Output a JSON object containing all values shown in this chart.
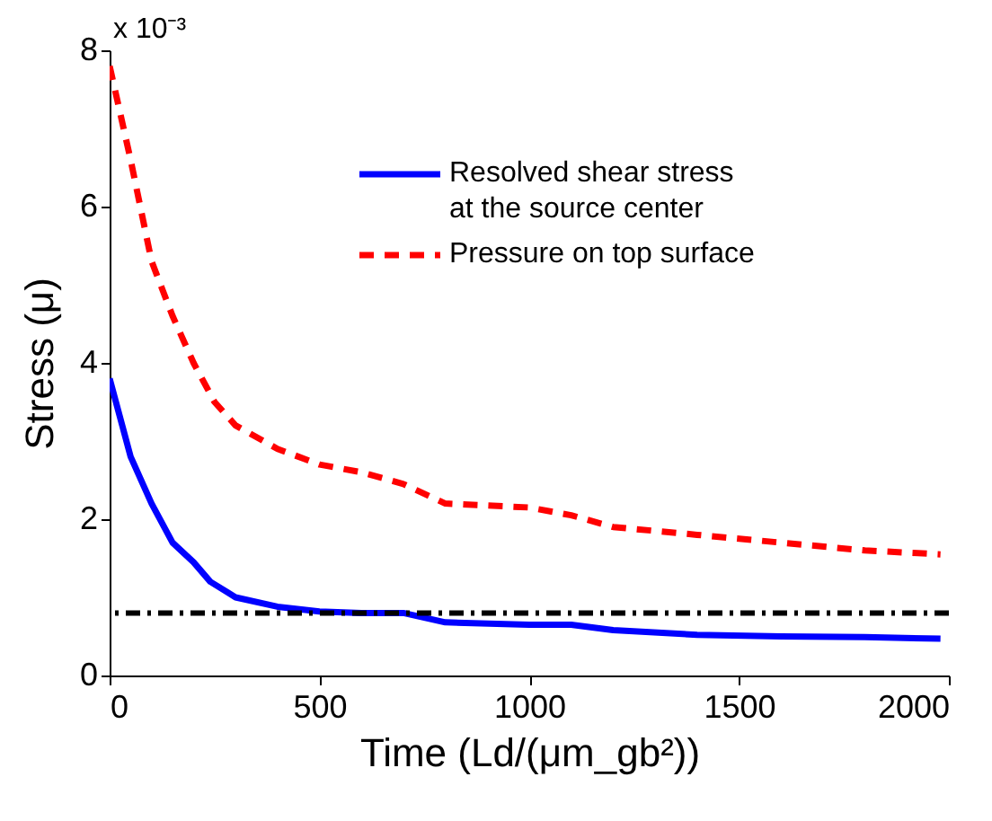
{
  "chart_data": {
    "type": "line",
    "xlabel": "Time (Ld/(μm_gb²))",
    "ylabel": "Stress (μ)",
    "annotations": [
      "x 10⁻³"
    ],
    "series": [
      {
        "name": "Resolved shear stress\nat the source center",
        "color": "#0000ff",
        "line_style": "solid",
        "x": [
          0,
          50,
          100,
          150,
          200,
          240,
          300,
          400,
          500,
          600,
          700,
          800,
          1000,
          1100,
          1200,
          1400,
          1600,
          1800,
          1980
        ],
        "values": [
          3.8,
          2.8,
          2.2,
          1.7,
          1.45,
          1.2,
          1.0,
          0.88,
          0.82,
          0.8,
          0.8,
          0.68,
          0.65,
          0.65,
          0.58,
          0.52,
          0.5,
          0.49,
          0.47
        ]
      },
      {
        "name": "Pressure on top surface",
        "color": "#ff0000",
        "line_style": "dashed",
        "x": [
          0,
          50,
          100,
          150,
          200,
          250,
          300,
          400,
          500,
          600,
          700,
          800,
          1000,
          1100,
          1200,
          1400,
          1600,
          1800,
          1980
        ],
        "values": [
          7.8,
          6.6,
          5.3,
          4.6,
          4.0,
          3.5,
          3.2,
          2.9,
          2.7,
          2.6,
          2.45,
          2.2,
          2.15,
          2.05,
          1.9,
          1.8,
          1.7,
          1.6,
          1.55
        ]
      }
    ],
    "ref_lines": [
      {
        "axis": "y",
        "value": 0.8,
        "color": "#000000",
        "line_style": "dashdot"
      }
    ],
    "xlim": [
      0,
      2000
    ],
    "xticks": [
      0,
      500,
      1000,
      1500,
      2000
    ],
    "ylim": [
      0,
      8
    ],
    "yticks": [
      0,
      2,
      4,
      6,
      8
    ],
    "grid": false,
    "legend": "top right",
    "marker": "none"
  }
}
